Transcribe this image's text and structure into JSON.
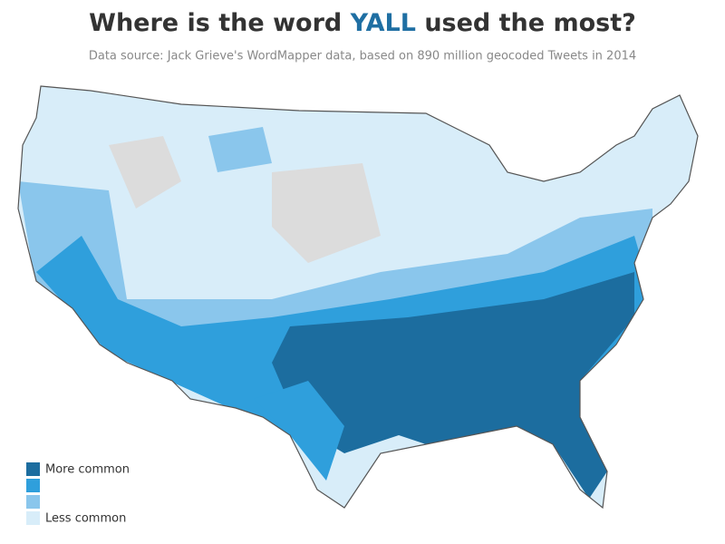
{
  "title": {
    "parts": [
      "Where is the word",
      "YALL",
      "used the most?"
    ],
    "highlight_color": "#1f6fa3",
    "color": "#333333"
  },
  "subtitle": "Data source: Jack Grieve's WordMapper data, based on 890 million geocoded Tweets in 2014",
  "legend": {
    "items": [
      {
        "label": "More common",
        "color": "#1c6d9f"
      },
      {
        "label": null,
        "color": "#2f9fdc"
      },
      {
        "label": null,
        "color": "#8ac6ec"
      },
      {
        "label": "Less common",
        "color": "#d8edf9"
      }
    ]
  }
}
